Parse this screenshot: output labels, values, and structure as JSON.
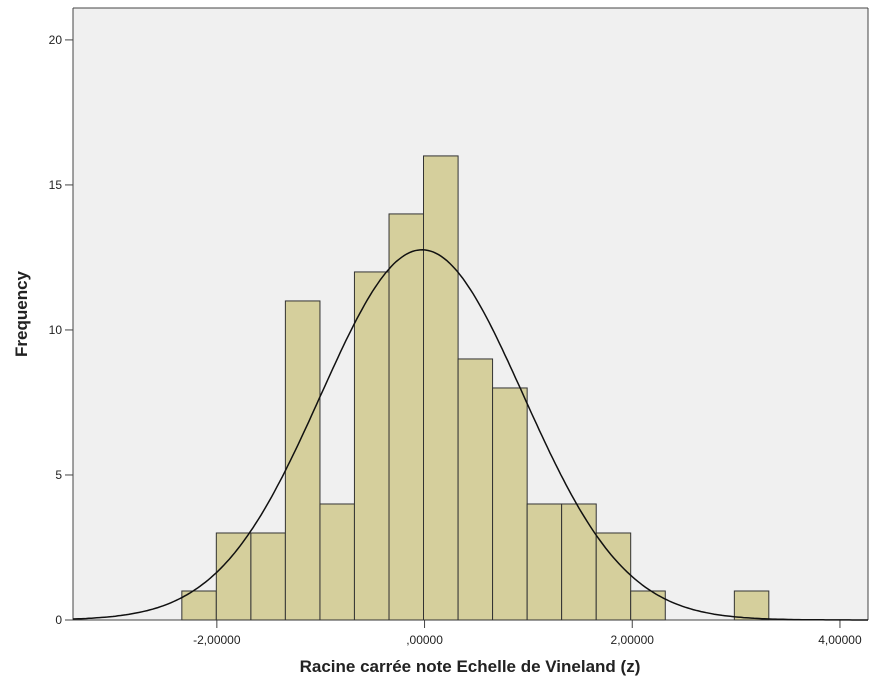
{
  "chart_data": {
    "type": "histogram",
    "x_label": "Racine carrée note Echelle de Vineland (z)",
    "y_label": "Frequency",
    "bins": [
      -2.337,
      -2.005,
      -1.672,
      -1.34,
      -1.007,
      -0.675,
      -0.342,
      -0.01,
      0.323,
      0.655,
      0.988,
      1.32,
      1.653,
      1.985,
      2.318,
      2.65,
      2.983,
      3.315
    ],
    "values": [
      1,
      3,
      3,
      11,
      4,
      12,
      14,
      16,
      9,
      8,
      4,
      4,
      3,
      1,
      0,
      0,
      1
    ],
    "color": "#d5cf9c",
    "xlim": [
      -3.385,
      4.27
    ],
    "xticks": [
      {
        "value": -2,
        "label": "-2,00000"
      },
      {
        "value": 0,
        "label": ",00000"
      },
      {
        "value": 2,
        "label": "2,00000"
      },
      {
        "value": 4,
        "label": "4,00000"
      }
    ],
    "ylim": [
      0,
      21.1
    ],
    "yticks": [
      0,
      5,
      10,
      15,
      20
    ]
  }
}
